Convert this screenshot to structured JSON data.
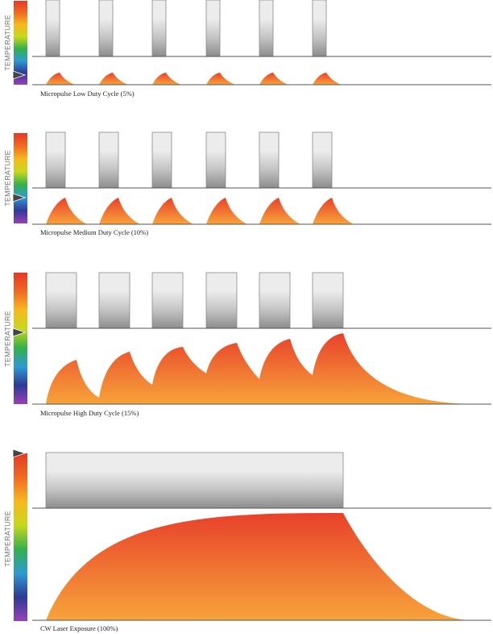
{
  "axis_label": "TEMPERATURE",
  "colors": {
    "spectrum": [
      "#e23a26",
      "#f06a22",
      "#f6b820",
      "#c8d81e",
      "#34b04a",
      "#2f9ad0",
      "#2e3a96",
      "#9a40b6"
    ],
    "pulse_top": "#ececec",
    "pulse_bottom": "#8c8c8c",
    "heat_top": "#e8412b",
    "heat_bottom": "#f7a33a",
    "marker": "#444444"
  },
  "panels": [
    {
      "id": "low",
      "caption": "Micropulse Low Duty Cycle (5%)",
      "duty_cycle_percent": 5,
      "pulse_count": 6,
      "temperature_level": 0.13
    },
    {
      "id": "medium",
      "caption": "Micropulse Medium Duty Cycle (10%)",
      "duty_cycle_percent": 10,
      "pulse_count": 6,
      "temperature_level": 0.28
    },
    {
      "id": "high",
      "caption": "Micropulse High Duty Cycle (15%)",
      "duty_cycle_percent": 15,
      "pulse_count": 6,
      "temperature_level": 0.56
    },
    {
      "id": "cw",
      "caption": "CW Laser Exposure (100%)",
      "duty_cycle_percent": 100,
      "pulse_count": 1,
      "temperature_level": 1.0
    }
  ]
}
